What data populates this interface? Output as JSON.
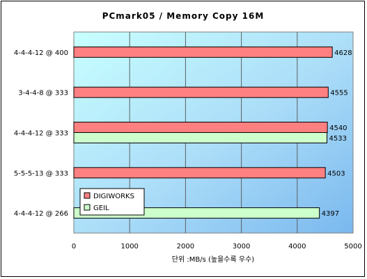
{
  "chart_data": {
    "type": "bar",
    "orientation": "horizontal",
    "title": "PCmark05 / Memory Copy 16M",
    "xlabel": "단위 :MB/s (높을수록 우수)",
    "ylabel": "",
    "xlim": [
      0,
      5000
    ],
    "x_ticks": [
      "0",
      "1000",
      "2000",
      "3000",
      "4000",
      "5000"
    ],
    "categories": [
      "4-4-4-12 @ 400",
      "3-4-4-8 @ 333",
      "4-4-4-12 @ 333",
      "5-5-5-13 @ 333",
      "4-4-4-12 @ 266"
    ],
    "series": [
      {
        "name": "DIGIWORKS",
        "color": "#ff8080",
        "values": [
          4628,
          4555,
          4540,
          4503,
          null
        ]
      },
      {
        "name": "GEIL",
        "color": "#ccffcc",
        "values": [
          null,
          null,
          4533,
          null,
          4397
        ]
      }
    ],
    "grid": true,
    "legend_position": "bottom-left inside plot"
  }
}
